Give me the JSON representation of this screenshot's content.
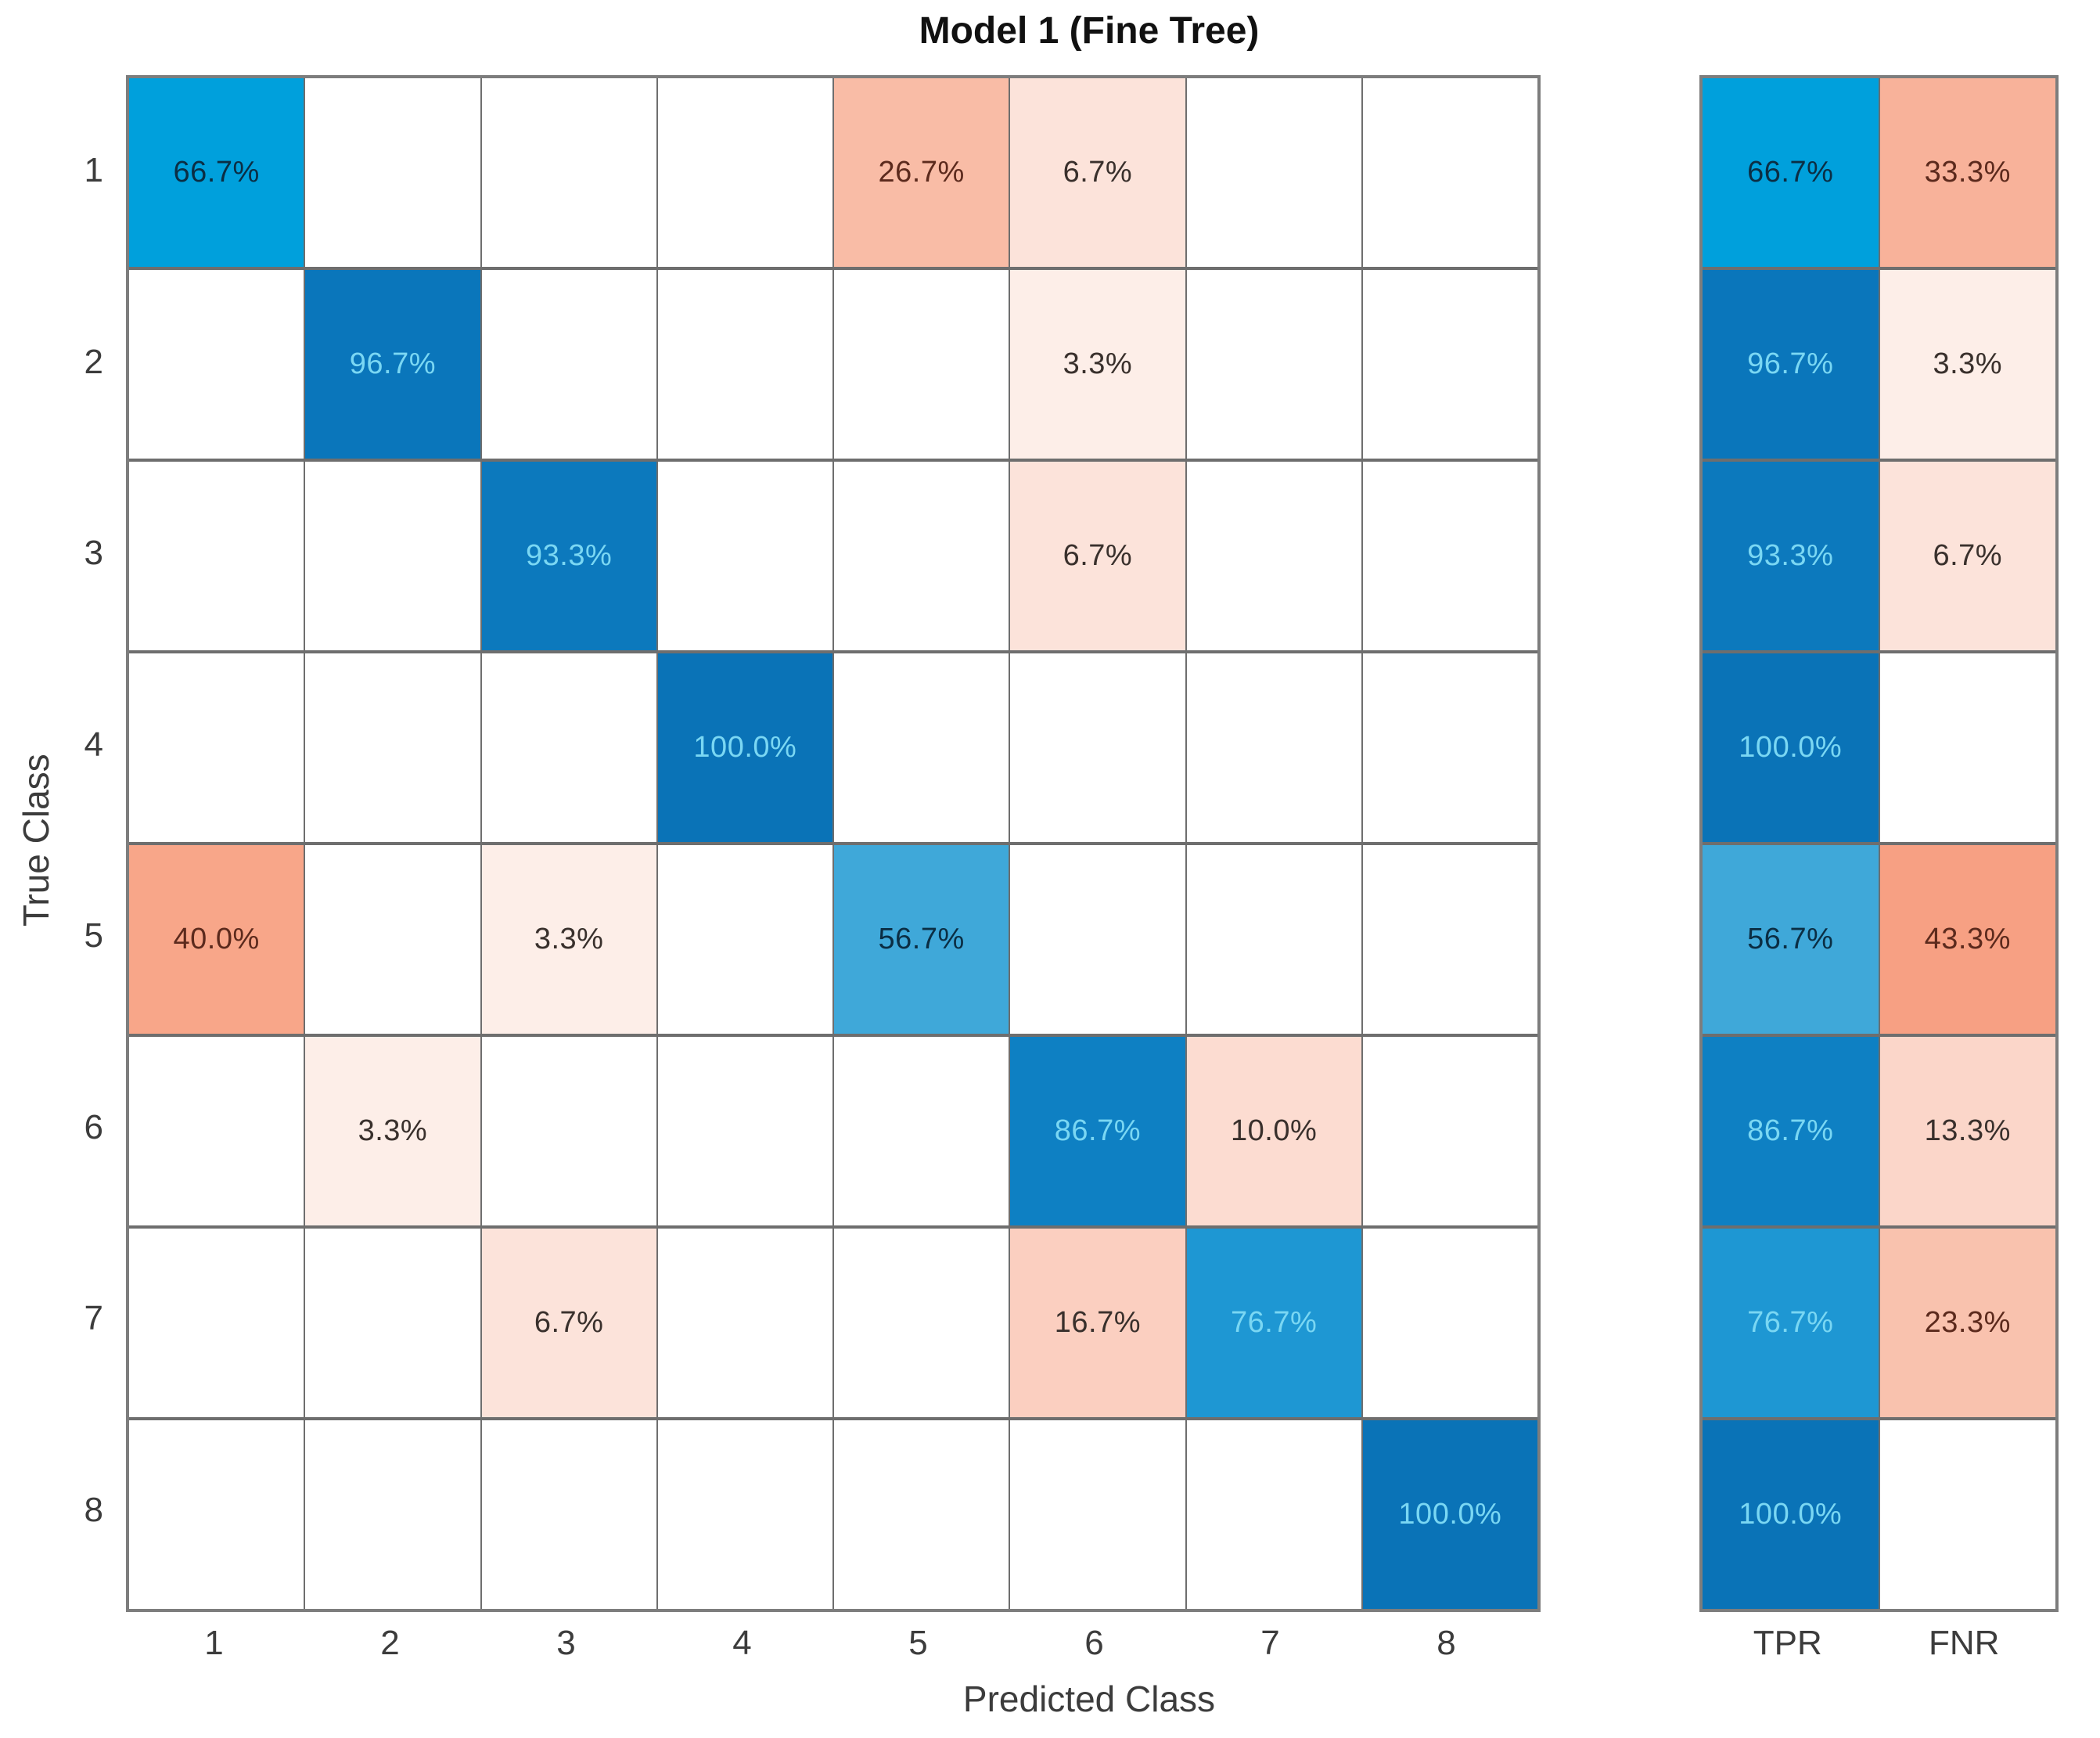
{
  "title": "Model 1 (Fine Tree)",
  "axes": {
    "xlabel": "Predicted Class",
    "ylabel": "True Class"
  },
  "summary_labels": {
    "tpr": "TPR",
    "fnr": "FNR"
  },
  "chart_data": {
    "type": "heatmap",
    "subtype": "confusion-matrix-row-normalized",
    "title": "Model 1 (Fine Tree)",
    "xlabel": "Predicted Class",
    "ylabel": "True Class",
    "classes": [
      "1",
      "2",
      "3",
      "4",
      "5",
      "6",
      "7",
      "8"
    ],
    "value_suffix": "%",
    "matrix_percent": [
      [
        "66.7",
        null,
        null,
        null,
        "26.7",
        "6.7",
        null,
        null
      ],
      [
        null,
        "96.7",
        null,
        null,
        null,
        "3.3",
        null,
        null
      ],
      [
        null,
        null,
        "93.3",
        null,
        null,
        "6.7",
        null,
        null
      ],
      [
        null,
        null,
        null,
        "100.0",
        null,
        null,
        null,
        null
      ],
      [
        "40.0",
        null,
        "3.3",
        null,
        "56.7",
        null,
        null,
        null
      ],
      [
        null,
        "3.3",
        null,
        null,
        null,
        "86.7",
        "10.0",
        null
      ],
      [
        null,
        null,
        "6.7",
        null,
        null,
        "16.7",
        "76.7",
        null
      ],
      [
        null,
        null,
        null,
        null,
        null,
        null,
        null,
        "100.0"
      ]
    ],
    "tpr_percent": [
      "66.7",
      "96.7",
      "93.3",
      "100.0",
      "56.7",
      "86.7",
      "76.7",
      "100.0"
    ],
    "fnr_percent": [
      "33.3",
      "3.3",
      "6.7",
      null,
      "43.3",
      "13.3",
      "23.3",
      null
    ],
    "legend": "right summary columns show true positive rate (TPR) and false negative rate (FNR) per true class",
    "colors": {
      "diag": {
        "56.7": "#3fa8d9",
        "66.7": "#00a0dc",
        "76.7": "#1e97d3",
        "86.7": "#0e80c3",
        "93.3": "#0c79bd",
        "96.7": "#0a76bb",
        "100.0": "#0a73b7"
      },
      "offdiag": {
        "3.3": "#fdeee8",
        "6.7": "#fce3da",
        "10.0": "#fcdcd1",
        "13.3": "#fbd6c9",
        "16.7": "#fbcfc0",
        "23.3": "#f9c2ae",
        "26.7": "#f9bca6",
        "33.3": "#f8b29a",
        "40.0": "#f8a689",
        "43.3": "#f7a083"
      },
      "empty_cell": "#ffffff",
      "text_cyan_on_dark_blue": "#7ad7f3",
      "text_navy_on_light_blue": "#0b2e44",
      "text_maroon_on_salmon": "#5c2a1d",
      "text_dark_on_light_pink": "#39302c",
      "cyan_text_min_percent": 76,
      "maroon_text_min_percent": 20,
      "grid_line": "#6e6e6e",
      "grid_border": "#7d7d7d"
    }
  }
}
